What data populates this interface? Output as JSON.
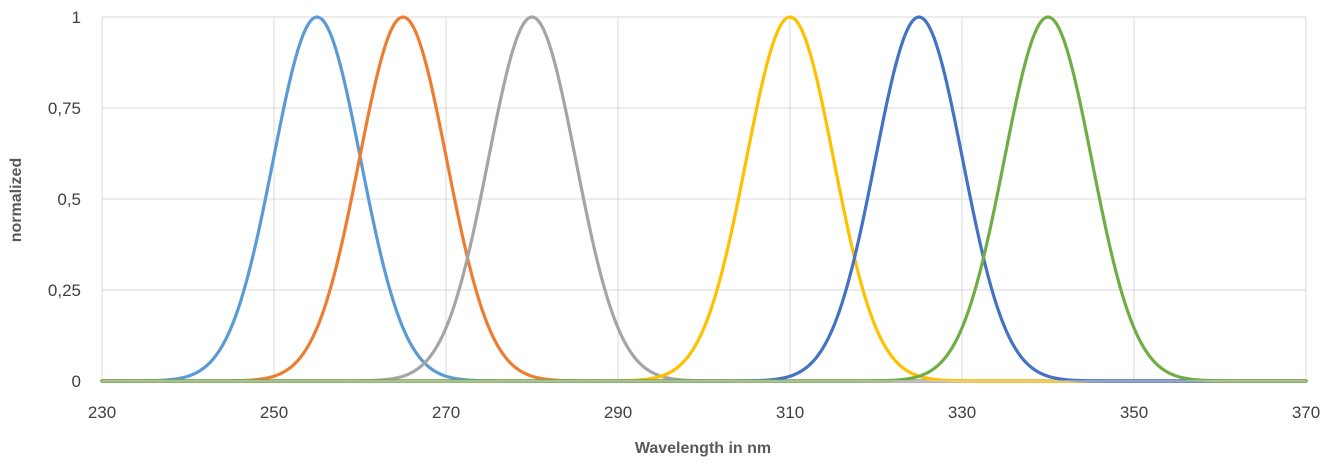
{
  "chart_data": {
    "type": "line",
    "title": "",
    "xlabel": "Wavelength in nm",
    "ylabel": "normalized",
    "xlim": [
      230,
      370
    ],
    "ylim": [
      0,
      1
    ],
    "x_ticks": [
      230,
      250,
      270,
      290,
      310,
      330,
      350,
      370
    ],
    "x_tick_labels": [
      "230",
      "250",
      "270",
      "290",
      "310",
      "330",
      "350",
      "370"
    ],
    "y_ticks": [
      0,
      0.25,
      0.5,
      0.75,
      1
    ],
    "y_tick_labels": [
      "0",
      "0,25",
      "0,5",
      "0,75",
      "1"
    ],
    "grid": {
      "vertical": true,
      "horizontal": true
    },
    "legend": "none",
    "curve_shape": "gaussian",
    "series": [
      {
        "color": "#5b9bd5",
        "peak_x": 255,
        "peak_y": 1,
        "half_max_x": [
          249,
          261
        ]
      },
      {
        "color": "#ed7d31",
        "peak_x": 265,
        "peak_y": 1,
        "half_max_x": [
          259,
          271
        ]
      },
      {
        "color": "#a5a5a5",
        "peak_x": 280,
        "peak_y": 1,
        "half_max_x": [
          274,
          286
        ]
      },
      {
        "color": "#ffc000",
        "peak_x": 310,
        "peak_y": 1,
        "half_max_x": [
          304,
          316
        ]
      },
      {
        "color": "#4472c4",
        "peak_x": 325,
        "peak_y": 1,
        "half_max_x": [
          319,
          331
        ]
      },
      {
        "color": "#70ad47",
        "peak_x": 340,
        "peak_y": 1,
        "half_max_x": [
          334,
          346
        ]
      }
    ]
  }
}
